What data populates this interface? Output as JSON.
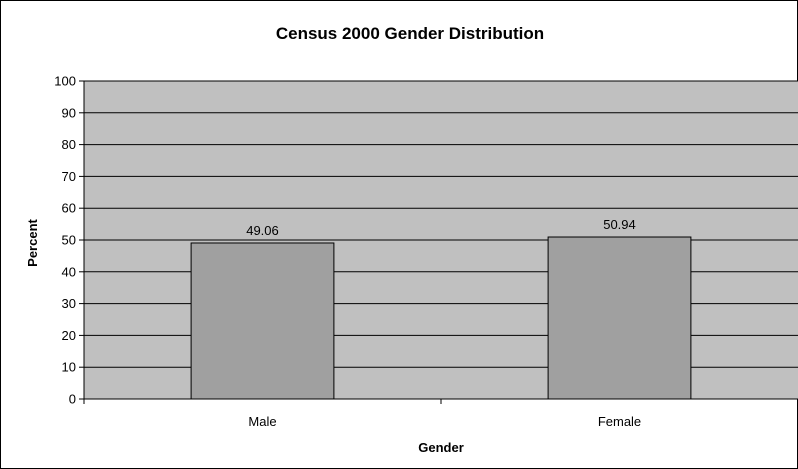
{
  "chart_data": {
    "type": "bar",
    "title": "Census 2000 Gender Distribution",
    "xlabel": "Gender",
    "ylabel": "Percent",
    "categories": [
      "Male",
      "Female"
    ],
    "values": [
      49.06,
      50.94
    ],
    "data_labels": [
      "49.06",
      "50.94"
    ],
    "ylim": [
      0,
      100
    ],
    "y_ticks": [
      0,
      10,
      20,
      30,
      40,
      50,
      60,
      70,
      80,
      90,
      100
    ],
    "grid": true,
    "legend": "none",
    "colors": {
      "plot_background": "#c0c0c0",
      "bar_fill": "#a0a0a0",
      "bar_stroke": "#000000",
      "gridline": "#000000"
    }
  }
}
